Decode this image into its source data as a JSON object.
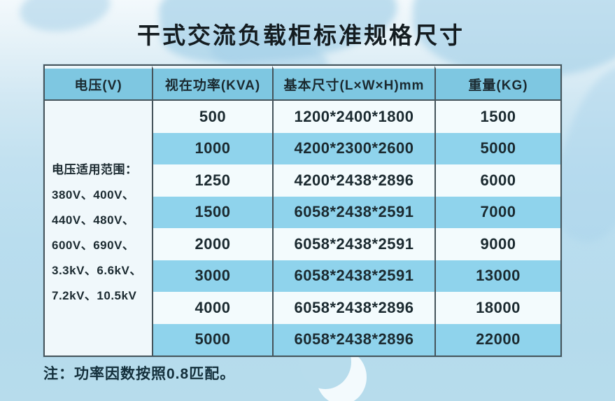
{
  "page": {
    "title": "干式交流负载柜标准规格尺寸",
    "note": "注：功率因数按照0.8匹配。"
  },
  "table": {
    "headers": [
      "电压(V)",
      "视在功率(KVA)",
      "基本尺寸(L×W×H)mm",
      "重量(KG)"
    ],
    "voltage_cell": {
      "lines": [
        "电压适用范围：",
        "380V、400V、",
        "440V、480V、",
        "600V、690V、",
        "3.3kV、6.6kV、",
        "7.2kV、10.5kV"
      ]
    },
    "rows": [
      {
        "power": "500",
        "size": "1200*2400*1800",
        "weight": "1500"
      },
      {
        "power": "1000",
        "size": "4200*2300*2600",
        "weight": "5000"
      },
      {
        "power": "1250",
        "size": "4200*2438*2896",
        "weight": "6000"
      },
      {
        "power": "1500",
        "size": "6058*2438*2591",
        "weight": "7000"
      },
      {
        "power": "2000",
        "size": "6058*2438*2591",
        "weight": "9000"
      },
      {
        "power": "3000",
        "size": "6058*2438*2591",
        "weight": "13000"
      },
      {
        "power": "4000",
        "size": "6058*2438*2896",
        "weight": "18000"
      },
      {
        "power": "5000",
        "size": "6058*2438*2896",
        "weight": "22000"
      }
    ],
    "colors": {
      "header_bg": "#7ec7e1",
      "row_cyan_bg": "#8fd3ec",
      "row_light_bg": "#f3fbfd",
      "border": "#45545b",
      "page_bg_top": "#f3f9fc",
      "page_bg_bottom": "#b5dbec",
      "text": "#1b2a30"
    }
  },
  "chart_data": {
    "type": "table",
    "title": "干式交流负载柜标准规格尺寸",
    "columns": [
      "电压(V)",
      "视在功率(KVA)",
      "基本尺寸(L×W×H)mm",
      "重量(KG)"
    ],
    "voltage_range": "380V、400V、440V、480V、600V、690V、3.3kV、6.6kV、7.2kV、10.5kV",
    "rows": [
      [
        "500",
        "1200*2400*1800",
        "1500"
      ],
      [
        "1000",
        "4200*2300*2600",
        "5000"
      ],
      [
        "1250",
        "4200*2438*2896",
        "6000"
      ],
      [
        "1500",
        "6058*2438*2591",
        "7000"
      ],
      [
        "2000",
        "6058*2438*2591",
        "9000"
      ],
      [
        "3000",
        "6058*2438*2591",
        "13000"
      ],
      [
        "4000",
        "6058*2438*2896",
        "18000"
      ],
      [
        "5000",
        "6058*2438*2896",
        "22000"
      ]
    ],
    "note": "注：功率因数按照0.8匹配。"
  }
}
